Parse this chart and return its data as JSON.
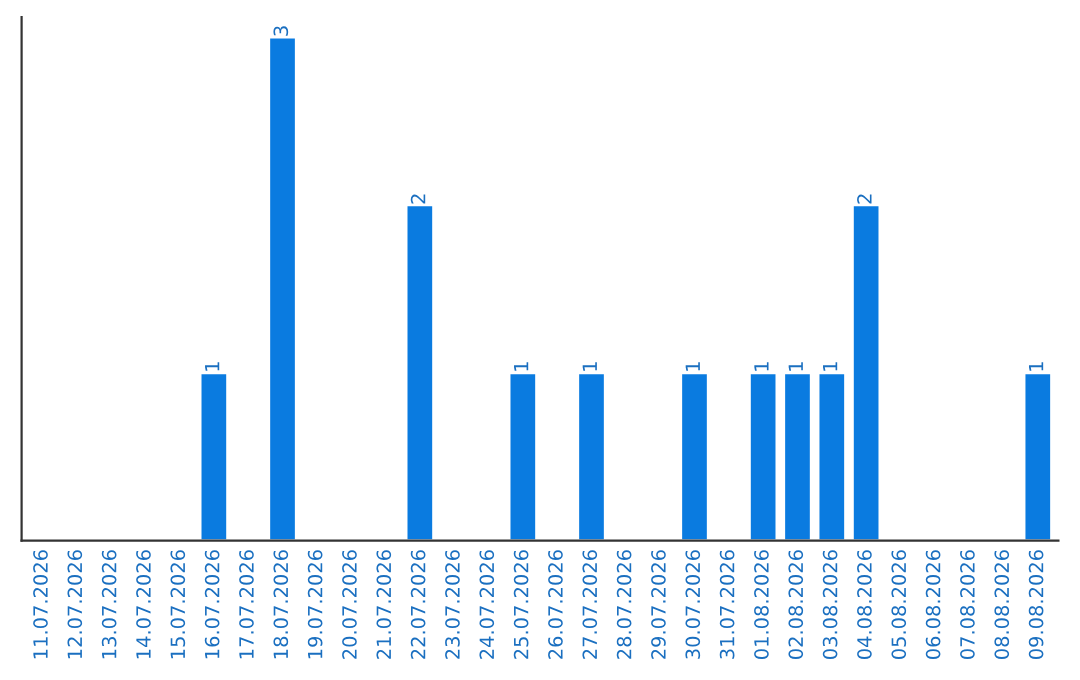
{
  "chart_data": {
    "type": "bar",
    "categories": [
      "11.07.2026",
      "12.07.2026",
      "13.07.2026",
      "14.07.2026",
      "15.07.2026",
      "16.07.2026",
      "17.07.2026",
      "18.07.2026",
      "19.07.2026",
      "20.07.2026",
      "21.07.2026",
      "22.07.2026",
      "23.07.2026",
      "24.07.2026",
      "25.07.2026",
      "26.07.2026",
      "27.07.2026",
      "28.07.2026",
      "29.07.2026",
      "30.07.2026",
      "31.07.2026",
      "01.08.2026",
      "02.08.2026",
      "03.08.2026",
      "04.08.2026",
      "05.08.2026",
      "06.08.2026",
      "07.08.2026",
      "08.08.2026",
      "09.08.2026"
    ],
    "values": [
      0,
      0,
      0,
      0,
      0,
      1,
      0,
      3,
      0,
      0,
      0,
      2,
      0,
      0,
      1,
      0,
      1,
      0,
      0,
      1,
      0,
      1,
      1,
      1,
      2,
      0,
      0,
      0,
      0,
      1
    ],
    "value_labels": [
      null,
      null,
      null,
      null,
      null,
      "1",
      null,
      "3",
      null,
      null,
      null,
      "2",
      null,
      null,
      "1",
      null,
      "1",
      null,
      null,
      "1",
      null,
      "1",
      "1",
      "1",
      "2",
      null,
      null,
      null,
      null,
      "1"
    ],
    "color": "#0a7be0",
    "ylim": [
      0,
      3.12
    ],
    "grid": false,
    "legend": false
  }
}
